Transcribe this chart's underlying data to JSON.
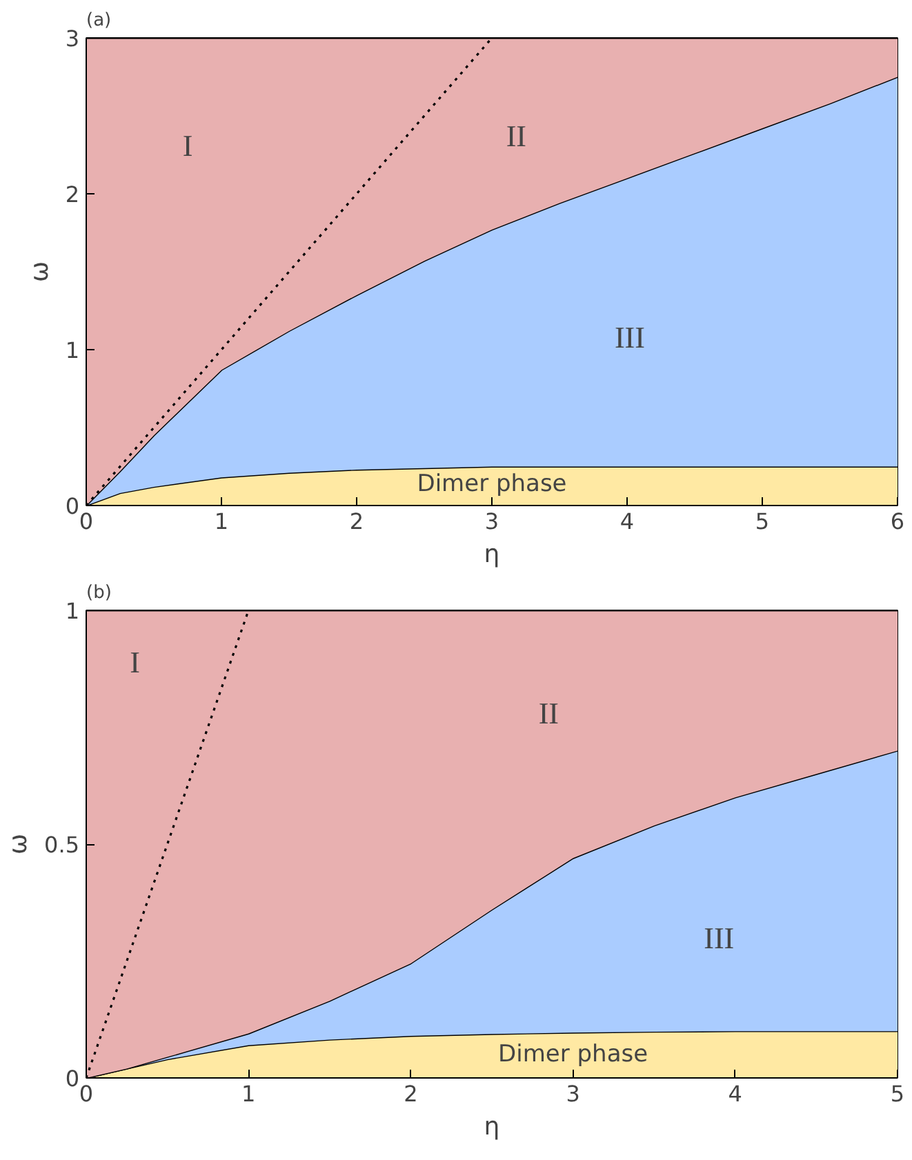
{
  "chart_data": [
    {
      "type": "area",
      "title": "(a)",
      "xlabel": "η",
      "ylabel": "ω",
      "stacked": true,
      "xlim": [
        0,
        6
      ],
      "ylim": [
        0,
        3
      ],
      "xticks": [
        0,
        1,
        2,
        3,
        4,
        5,
        6
      ],
      "yticks": [
        0,
        1,
        2,
        3
      ],
      "x": [
        0,
        0.25,
        0.5,
        1,
        1.5,
        2,
        2.5,
        3,
        3.5,
        4,
        4.5,
        5,
        5.5,
        6
      ],
      "series": [
        {
          "color": "#ffe9a3",
          "values": [
            0,
            0.08,
            0.12,
            0.18,
            0.21,
            0.23,
            0.24,
            0.25,
            0.25,
            0.25,
            0.25,
            0.25,
            0.25,
            0.25
          ]
        },
        {
          "color": "#aaccff",
          "values": [
            0,
            0.14,
            0.33,
            0.69,
            0.91,
            1.12,
            1.33,
            1.52,
            1.69,
            1.85,
            2.01,
            2.17,
            2.33,
            2.5
          ]
        },
        {
          "color": "#e8b0b0",
          "values": [
            3,
            2.78,
            2.55,
            2.13,
            1.88,
            1.65,
            1.43,
            1.23,
            1.06,
            0.9,
            0.74,
            0.58,
            0.42,
            0.25
          ]
        },
        {
          "type": "line",
          "color": "#000000",
          "line_style": "dotted",
          "x": [
            0,
            3
          ],
          "values": [
            0,
            3
          ]
        }
      ],
      "annotations": [
        "I",
        "II",
        "III",
        "Dimer phase"
      ]
    },
    {
      "type": "area",
      "title": "(b)",
      "xlabel": "η",
      "ylabel": "ω",
      "stacked": true,
      "xlim": [
        0,
        5
      ],
      "ylim": [
        0,
        1
      ],
      "xticks": [
        0,
        1,
        2,
        3,
        4,
        5
      ],
      "yticks": [
        0,
        0.5,
        1
      ],
      "x": [
        0,
        0.25,
        0.5,
        1,
        1.5,
        2,
        2.5,
        3,
        3.5,
        4,
        4.5,
        5
      ],
      "series": [
        {
          "color": "#ffe9a3",
          "values": [
            0,
            0.02,
            0.04,
            0.07,
            0.082,
            0.09,
            0.094,
            0.097,
            0.099,
            0.1,
            0.1,
            0.1
          ]
        },
        {
          "color": "#aaccff",
          "values": [
            0,
            0,
            0.005,
            0.025,
            0.083,
            0.155,
            0.266,
            0.373,
            0.441,
            0.5,
            0.55,
            0.6
          ]
        },
        {
          "color": "#e8b0b0",
          "values": [
            1,
            0.98,
            0.955,
            0.905,
            0.835,
            0.755,
            0.64,
            0.53,
            0.46,
            0.4,
            0.35,
            0.3
          ]
        },
        {
          "type": "line",
          "color": "#000000",
          "line_style": "dotted",
          "x": [
            0,
            1
          ],
          "values": [
            0,
            1
          ]
        }
      ],
      "annotations": [
        "I",
        "II",
        "III",
        "Dimer phase"
      ]
    }
  ]
}
